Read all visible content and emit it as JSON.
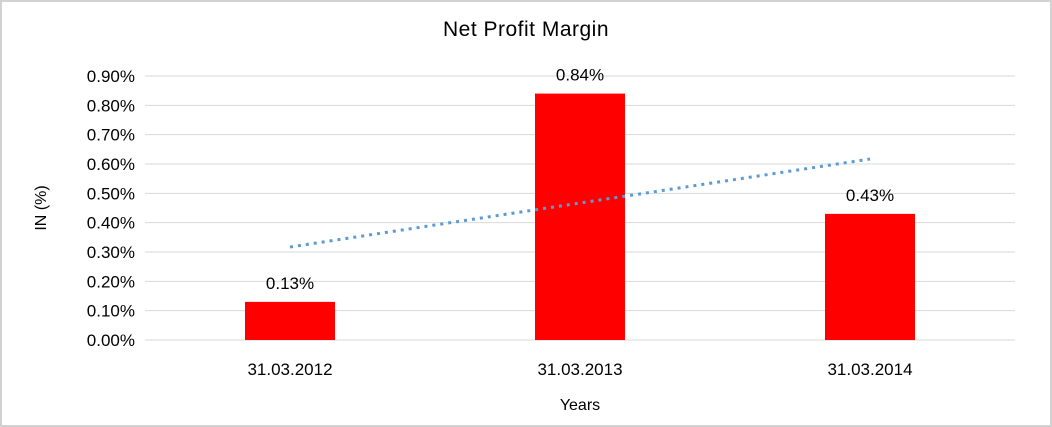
{
  "frame": {
    "background": "#ffffff",
    "border_color": "#d2d2d2"
  },
  "chart_data": {
    "type": "bar",
    "title": "Net Profit Margin",
    "xlabel": "Years",
    "ylabel": "IN (%)",
    "categories": [
      "31.03.2012",
      "31.03.2013",
      "31.03.2014"
    ],
    "series": [
      {
        "name": "Net Profit Margin",
        "values": [
          0.13,
          0.84,
          0.43
        ]
      }
    ],
    "data_labels": [
      "0.13%",
      "0.84%",
      "0.43%"
    ],
    "y_ticks": [
      "0.90%",
      "0.80%",
      "0.70%",
      "0.60%",
      "0.50%",
      "0.40%",
      "0.30%",
      "0.20%",
      "0.10%",
      "0.00%"
    ],
    "ylim": [
      0,
      0.9
    ],
    "y_tick_step": 0.1,
    "grid": true,
    "legend": "none",
    "bar_color": "#ff0000",
    "gridline_color": "#d9d9d9",
    "trendline": {
      "type": "linear",
      "style": "dotted",
      "color": "#5b9bd5",
      "start_value": 0.317,
      "end_value": 0.617
    }
  }
}
